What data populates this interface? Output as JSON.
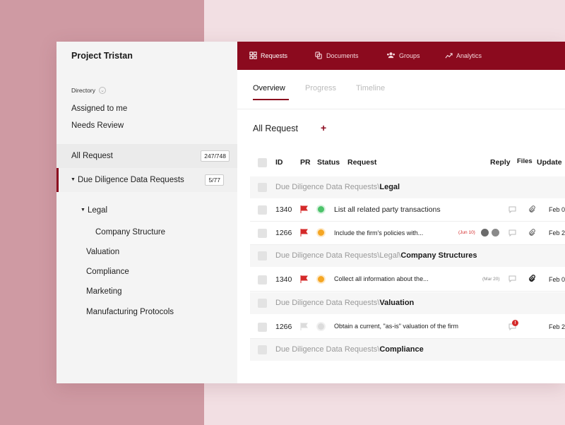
{
  "project": {
    "title": "Project Tristan"
  },
  "sidebar": {
    "directory_label": "Directory",
    "links": [
      "Assigned to me",
      "Needs Review"
    ],
    "all_request": {
      "label": "All Request",
      "count": "247/748"
    },
    "dd_requests": {
      "label": "Due Diligence Data Requests",
      "count": "5/77"
    },
    "tree": {
      "legal": "Legal",
      "company_structure": "Company Structure",
      "valuation": "Valuation",
      "compliance": "Compliance",
      "marketing": "Marketing",
      "manufacturing": "Manufacturing Protocols"
    }
  },
  "topbar": {
    "items": [
      {
        "label": "Requests",
        "icon": "grid-icon",
        "active": true
      },
      {
        "label": "Documents",
        "icon": "documents-icon",
        "active": false
      },
      {
        "label": "Groups",
        "icon": "users-icon",
        "active": false
      },
      {
        "label": "Analytics",
        "icon": "trend-icon",
        "active": false
      }
    ]
  },
  "subtabs": [
    "Overview",
    "Progress",
    "Timeline"
  ],
  "section": {
    "title": "All Request",
    "add": "+"
  },
  "table": {
    "headers": {
      "id": "ID",
      "pr": "PR",
      "status": "Status",
      "request": "Request",
      "reply": "Reply",
      "files": "Files",
      "updated": "Update"
    },
    "groups": [
      {
        "path": "Due Diligence Data Requests\\",
        "name": "Legal"
      },
      {
        "path": "Due Diligence Data Requests\\Legal\\",
        "name": "Company Structures"
      },
      {
        "path": "Due Diligence Data Requests\\",
        "name": "Valuation"
      },
      {
        "path": "Due Diligence Data Requests\\",
        "name": "Compliance"
      }
    ],
    "rows": [
      {
        "id": "1340",
        "priority_color": "#d42a2a",
        "status_color": "#4cc36a",
        "request": "List all related party transactions",
        "tag": "",
        "updated": "Feb 0"
      },
      {
        "id": "1266",
        "priority_color": "#d42a2a",
        "status_color": "#f5a623",
        "request": "Include the firm's policies with...",
        "tag": "(Jun 10)",
        "tag_color": "#d42a2a",
        "updated": "Feb 2"
      },
      {
        "id": "1340",
        "priority_color": "#d42a2a",
        "status_color": "#f5a623",
        "request": "Collect all information about the...",
        "tag": "(Mar 20)",
        "tag_color": "#888888",
        "updated": "Feb 0"
      },
      {
        "id": "1266",
        "priority_color": "#dcdcdc",
        "status_color": "#dcdcdc",
        "request": "Obtain a current, \"as-is\" valuation of the firm",
        "tag": "",
        "updated": "Feb 2"
      }
    ]
  },
  "colors": {
    "accent": "#8b0a1e",
    "sidebar_bg": "#f4f4f4",
    "bg_left": "#cf9aa3",
    "bg_right": "#f2dfe3"
  }
}
